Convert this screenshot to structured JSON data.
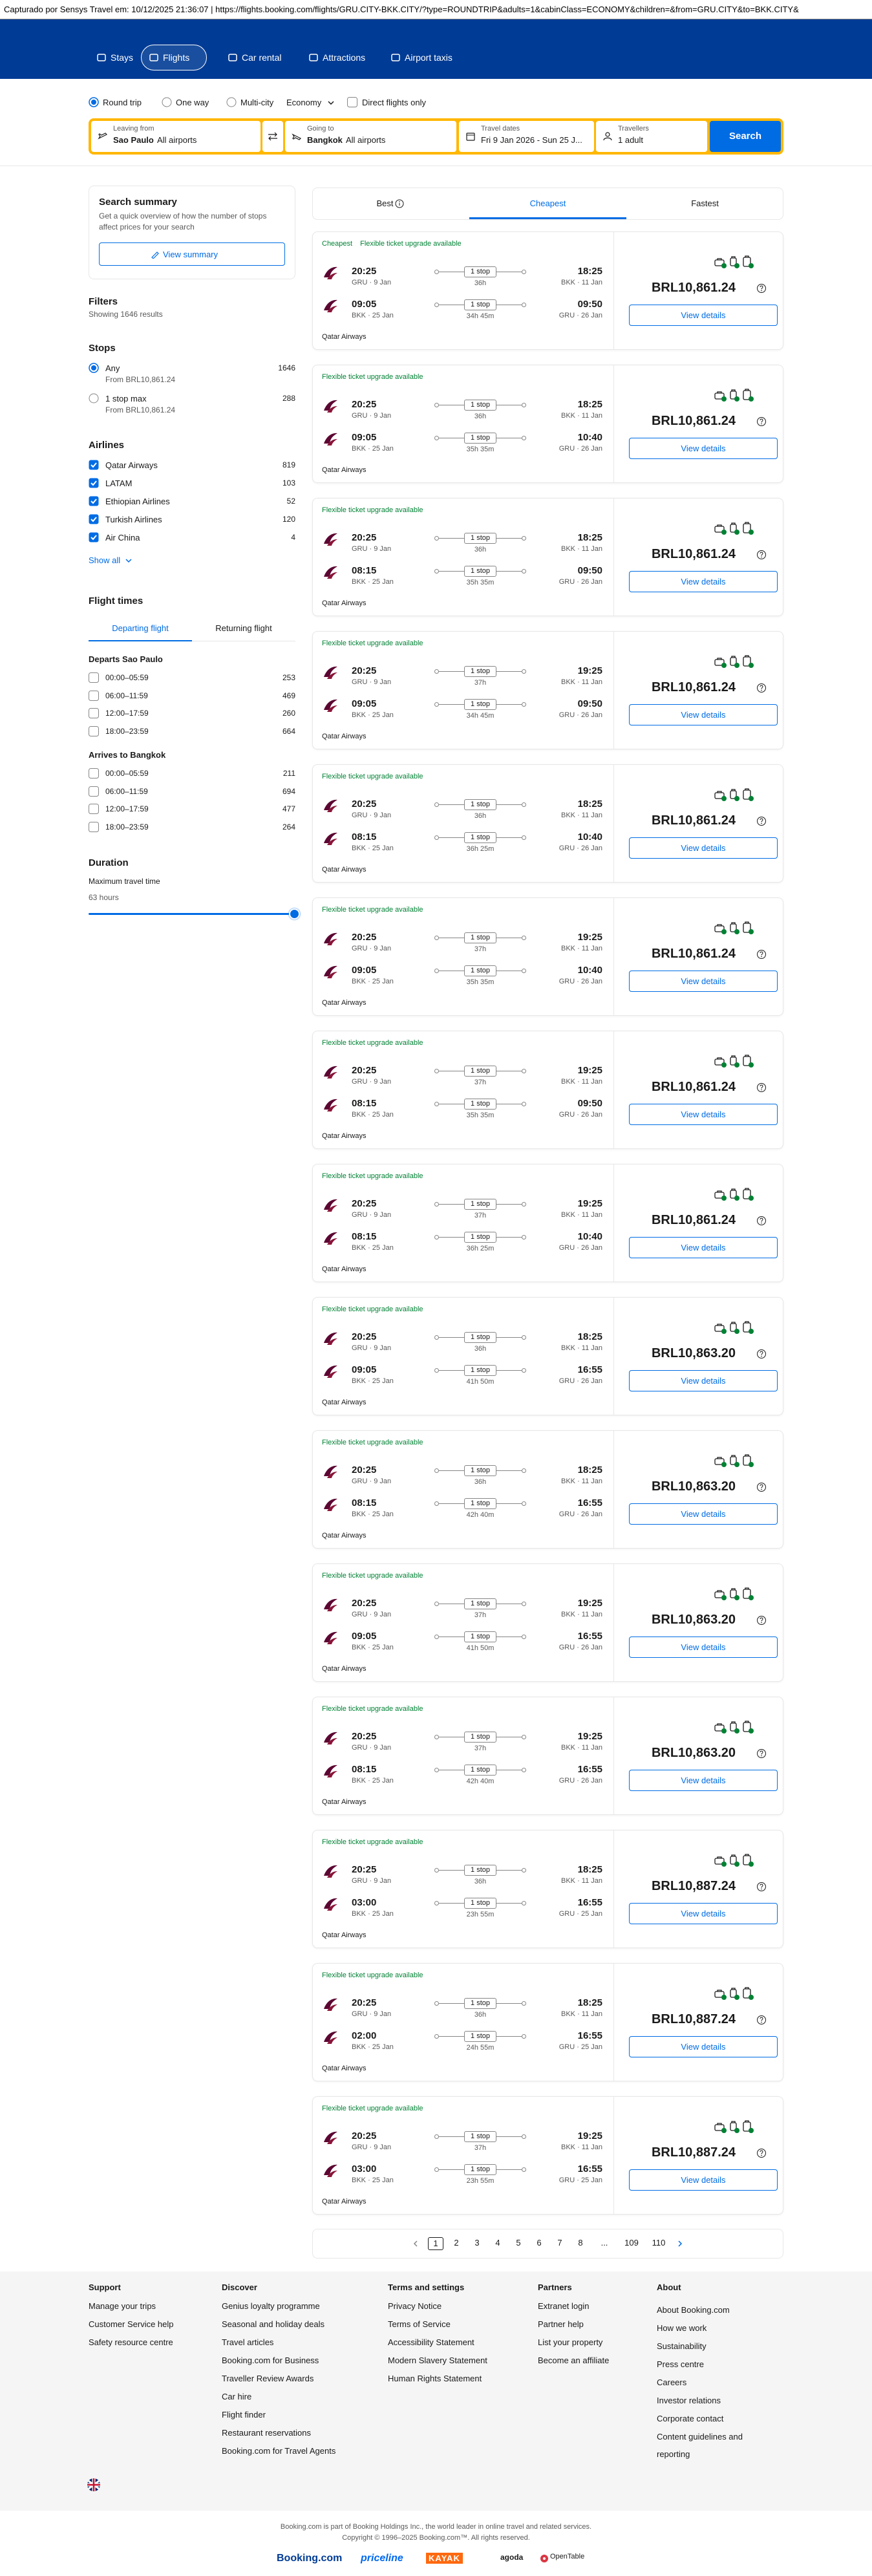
{
  "capture": "Capturado por Sensys Travel em: 10/12/2025 21:36:07  |  https://flights.booking.com/flights/GRU.CITY-BKK.CITY/?type=ROUNDTRIP&adults=1&cabinClass=ECONOMY&children=&from=GRU.CITY&to=BKK.CITY&",
  "nav": [
    "Stays",
    "Flights",
    "Car rental",
    "Attractions",
    "Airport taxis"
  ],
  "search": {
    "trip_types": [
      "Round trip",
      "One way",
      "Multi-city"
    ],
    "cabin": "Economy",
    "direct": "Direct flights only",
    "from": {
      "label": "Leaving from",
      "city": "Sao Paulo",
      "airports": "All airports"
    },
    "to": {
      "label": "Going to",
      "city": "Bangkok",
      "airports": "All airports"
    },
    "dates": {
      "label": "Travel dates",
      "value": "Fri 9 Jan 2026 - Sun 25 J..."
    },
    "travellers": {
      "label": "Travellers",
      "value": "1 adult"
    },
    "button": "Search"
  },
  "sidebar": {
    "summary": {
      "title": "Search summary",
      "text": "Get a quick overview of how the number of stops affect prices for your search",
      "button": "View summary"
    },
    "filters": {
      "title": "Filters",
      "count": "Showing 1646 results"
    },
    "stops": {
      "title": "Stops",
      "options": [
        {
          "label": "Any",
          "sub": "From BRL10,861.24",
          "count": "1646"
        },
        {
          "label": "1 stop max",
          "sub": "From BRL10,861.24",
          "count": "288"
        }
      ]
    },
    "airlines": {
      "title": "Airlines",
      "options": [
        {
          "label": "Qatar Airways",
          "count": "819"
        },
        {
          "label": "LATAM",
          "count": "103"
        },
        {
          "label": "Ethiopian Airlines",
          "count": "52"
        },
        {
          "label": "Turkish Airlines",
          "count": "120"
        },
        {
          "label": "Air China",
          "count": "4"
        }
      ],
      "show_all": "Show all"
    },
    "flight_times": {
      "title": "Flight times",
      "tabs": [
        "Departing flight",
        "Returning flight"
      ],
      "groups": [
        {
          "title": "Departs Sao Paulo",
          "options": [
            {
              "label": "00:00–05:59",
              "count": "253"
            },
            {
              "label": "06:00–11:59",
              "count": "469"
            },
            {
              "label": "12:00–17:59",
              "count": "260"
            },
            {
              "label": "18:00–23:59",
              "count": "664"
            }
          ]
        },
        {
          "title": "Arrives to Bangkok",
          "options": [
            {
              "label": "00:00–05:59",
              "count": "211"
            },
            {
              "label": "06:00–11:59",
              "count": "694"
            },
            {
              "label": "12:00–17:59",
              "count": "477"
            },
            {
              "label": "18:00–23:59",
              "count": "264"
            }
          ]
        }
      ]
    },
    "duration": {
      "title": "Duration",
      "label": "Maximum travel time",
      "value": "63 hours"
    }
  },
  "tabs": [
    "Best",
    "Cheapest",
    "Fastest"
  ],
  "results": [
    {
      "badges": [
        "Cheapest",
        "Flexible ticket upgrade available"
      ],
      "legs": [
        {
          "dep_time": "20:25",
          "dep_place": "GRU · 9 Jan",
          "stops": "1 stop",
          "duration": "36h",
          "arr_time": "18:25",
          "arr_place": "BKK · 11 Jan"
        },
        {
          "dep_time": "09:05",
          "dep_place": "BKK · 25 Jan",
          "stops": "1 stop",
          "duration": "34h 45m",
          "arr_time": "09:50",
          "arr_place": "GRU · 26 Jan"
        }
      ],
      "airline": "Qatar Airways",
      "price": "BRL10,861.24",
      "button": "View details"
    },
    {
      "badges": [
        "Flexible ticket upgrade available"
      ],
      "legs": [
        {
          "dep_time": "20:25",
          "dep_place": "GRU · 9 Jan",
          "stops": "1 stop",
          "duration": "36h",
          "arr_time": "18:25",
          "arr_place": "BKK · 11 Jan"
        },
        {
          "dep_time": "09:05",
          "dep_place": "BKK · 25 Jan",
          "stops": "1 stop",
          "duration": "35h 35m",
          "arr_time": "10:40",
          "arr_place": "GRU · 26 Jan"
        }
      ],
      "airline": "Qatar Airways",
      "price": "BRL10,861.24",
      "button": "View details"
    },
    {
      "badges": [
        "Flexible ticket upgrade available"
      ],
      "legs": [
        {
          "dep_time": "20:25",
          "dep_place": "GRU · 9 Jan",
          "stops": "1 stop",
          "duration": "36h",
          "arr_time": "18:25",
          "arr_place": "BKK · 11 Jan"
        },
        {
          "dep_time": "08:15",
          "dep_place": "BKK · 25 Jan",
          "stops": "1 stop",
          "duration": "35h 35m",
          "arr_time": "09:50",
          "arr_place": "GRU · 26 Jan"
        }
      ],
      "airline": "Qatar Airways",
      "price": "BRL10,861.24",
      "button": "View details"
    },
    {
      "badges": [
        "Flexible ticket upgrade available"
      ],
      "legs": [
        {
          "dep_time": "20:25",
          "dep_place": "GRU · 9 Jan",
          "stops": "1 stop",
          "duration": "37h",
          "arr_time": "19:25",
          "arr_place": "BKK · 11 Jan"
        },
        {
          "dep_time": "09:05",
          "dep_place": "BKK · 25 Jan",
          "stops": "1 stop",
          "duration": "34h 45m",
          "arr_time": "09:50",
          "arr_place": "GRU · 26 Jan"
        }
      ],
      "airline": "Qatar Airways",
      "price": "BRL10,861.24",
      "button": "View details"
    },
    {
      "badges": [
        "Flexible ticket upgrade available"
      ],
      "legs": [
        {
          "dep_time": "20:25",
          "dep_place": "GRU · 9 Jan",
          "stops": "1 stop",
          "duration": "36h",
          "arr_time": "18:25",
          "arr_place": "BKK · 11 Jan"
        },
        {
          "dep_time": "08:15",
          "dep_place": "BKK · 25 Jan",
          "stops": "1 stop",
          "duration": "36h 25m",
          "arr_time": "10:40",
          "arr_place": "GRU · 26 Jan"
        }
      ],
      "airline": "Qatar Airways",
      "price": "BRL10,861.24",
      "button": "View details"
    },
    {
      "badges": [
        "Flexible ticket upgrade available"
      ],
      "legs": [
        {
          "dep_time": "20:25",
          "dep_place": "GRU · 9 Jan",
          "stops": "1 stop",
          "duration": "37h",
          "arr_time": "19:25",
          "arr_place": "BKK · 11 Jan"
        },
        {
          "dep_time": "09:05",
          "dep_place": "BKK · 25 Jan",
          "stops": "1 stop",
          "duration": "35h 35m",
          "arr_time": "10:40",
          "arr_place": "GRU · 26 Jan"
        }
      ],
      "airline": "Qatar Airways",
      "price": "BRL10,861.24",
      "button": "View details"
    },
    {
      "badges": [
        "Flexible ticket upgrade available"
      ],
      "legs": [
        {
          "dep_time": "20:25",
          "dep_place": "GRU · 9 Jan",
          "stops": "1 stop",
          "duration": "37h",
          "arr_time": "19:25",
          "arr_place": "BKK · 11 Jan"
        },
        {
          "dep_time": "08:15",
          "dep_place": "BKK · 25 Jan",
          "stops": "1 stop",
          "duration": "35h 35m",
          "arr_time": "09:50",
          "arr_place": "GRU · 26 Jan"
        }
      ],
      "airline": "Qatar Airways",
      "price": "BRL10,861.24",
      "button": "View details"
    },
    {
      "badges": [
        "Flexible ticket upgrade available"
      ],
      "legs": [
        {
          "dep_time": "20:25",
          "dep_place": "GRU · 9 Jan",
          "stops": "1 stop",
          "duration": "37h",
          "arr_time": "19:25",
          "arr_place": "BKK · 11 Jan"
        },
        {
          "dep_time": "08:15",
          "dep_place": "BKK · 25 Jan",
          "stops": "1 stop",
          "duration": "36h 25m",
          "arr_time": "10:40",
          "arr_place": "GRU · 26 Jan"
        }
      ],
      "airline": "Qatar Airways",
      "price": "BRL10,861.24",
      "button": "View details"
    },
    {
      "badges": [
        "Flexible ticket upgrade available"
      ],
      "legs": [
        {
          "dep_time": "20:25",
          "dep_place": "GRU · 9 Jan",
          "stops": "1 stop",
          "duration": "36h",
          "arr_time": "18:25",
          "arr_place": "BKK · 11 Jan"
        },
        {
          "dep_time": "09:05",
          "dep_place": "BKK · 25 Jan",
          "stops": "1 stop",
          "duration": "41h 50m",
          "arr_time": "16:55",
          "arr_place": "GRU · 26 Jan"
        }
      ],
      "airline": "Qatar Airways",
      "price": "BRL10,863.20",
      "button": "View details"
    },
    {
      "badges": [
        "Flexible ticket upgrade available"
      ],
      "legs": [
        {
          "dep_time": "20:25",
          "dep_place": "GRU · 9 Jan",
          "stops": "1 stop",
          "duration": "36h",
          "arr_time": "18:25",
          "arr_place": "BKK · 11 Jan"
        },
        {
          "dep_time": "08:15",
          "dep_place": "BKK · 25 Jan",
          "stops": "1 stop",
          "duration": "42h 40m",
          "arr_time": "16:55",
          "arr_place": "GRU · 26 Jan"
        }
      ],
      "airline": "Qatar Airways",
      "price": "BRL10,863.20",
      "button": "View details"
    },
    {
      "badges": [
        "Flexible ticket upgrade available"
      ],
      "legs": [
        {
          "dep_time": "20:25",
          "dep_place": "GRU · 9 Jan",
          "stops": "1 stop",
          "duration": "37h",
          "arr_time": "19:25",
          "arr_place": "BKK · 11 Jan"
        },
        {
          "dep_time": "09:05",
          "dep_place": "BKK · 25 Jan",
          "stops": "1 stop",
          "duration": "41h 50m",
          "arr_time": "16:55",
          "arr_place": "GRU · 26 Jan"
        }
      ],
      "airline": "Qatar Airways",
      "price": "BRL10,863.20",
      "button": "View details"
    },
    {
      "badges": [
        "Flexible ticket upgrade available"
      ],
      "legs": [
        {
          "dep_time": "20:25",
          "dep_place": "GRU · 9 Jan",
          "stops": "1 stop",
          "duration": "37h",
          "arr_time": "19:25",
          "arr_place": "BKK · 11 Jan"
        },
        {
          "dep_time": "08:15",
          "dep_place": "BKK · 25 Jan",
          "stops": "1 stop",
          "duration": "42h 40m",
          "arr_time": "16:55",
          "arr_place": "GRU · 26 Jan"
        }
      ],
      "airline": "Qatar Airways",
      "price": "BRL10,863.20",
      "button": "View details"
    },
    {
      "badges": [
        "Flexible ticket upgrade available"
      ],
      "legs": [
        {
          "dep_time": "20:25",
          "dep_place": "GRU · 9 Jan",
          "stops": "1 stop",
          "duration": "36h",
          "arr_time": "18:25",
          "arr_place": "BKK · 11 Jan"
        },
        {
          "dep_time": "03:00",
          "dep_place": "BKK · 25 Jan",
          "stops": "1 stop",
          "duration": "23h 55m",
          "arr_time": "16:55",
          "arr_place": "GRU · 25 Jan"
        }
      ],
      "airline": "Qatar Airways",
      "price": "BRL10,887.24",
      "button": "View details"
    },
    {
      "badges": [
        "Flexible ticket upgrade available"
      ],
      "legs": [
        {
          "dep_time": "20:25",
          "dep_place": "GRU · 9 Jan",
          "stops": "1 stop",
          "duration": "36h",
          "arr_time": "18:25",
          "arr_place": "BKK · 11 Jan"
        },
        {
          "dep_time": "02:00",
          "dep_place": "BKK · 25 Jan",
          "stops": "1 stop",
          "duration": "24h 55m",
          "arr_time": "16:55",
          "arr_place": "GRU · 25 Jan"
        }
      ],
      "airline": "Qatar Airways",
      "price": "BRL10,887.24",
      "button": "View details"
    },
    {
      "badges": [
        "Flexible ticket upgrade available"
      ],
      "legs": [
        {
          "dep_time": "20:25",
          "dep_place": "GRU · 9 Jan",
          "stops": "1 stop",
          "duration": "37h",
          "arr_time": "19:25",
          "arr_place": "BKK · 11 Jan"
        },
        {
          "dep_time": "03:00",
          "dep_place": "BKK · 25 Jan",
          "stops": "1 stop",
          "duration": "23h 55m",
          "arr_time": "16:55",
          "arr_place": "GRU · 25 Jan"
        }
      ],
      "airline": "Qatar Airways",
      "price": "BRL10,887.24",
      "button": "View details"
    }
  ],
  "pagination": [
    "1",
    "2",
    "3",
    "4",
    "5",
    "6",
    "7",
    "8",
    "...",
    "109",
    "110"
  ],
  "footer": {
    "columns": [
      {
        "title": "Support",
        "links": [
          "Manage your trips",
          "Customer Service help",
          "Safety resource centre"
        ]
      },
      {
        "title": "Discover",
        "links": [
          "Genius loyalty programme",
          "Seasonal and holiday deals",
          "Travel articles",
          "Booking.com for Business",
          "Traveller Review Awards",
          "Car hire",
          "Flight finder",
          "Restaurant reservations",
          "Booking.com for Travel Agents"
        ]
      },
      {
        "title": "Terms and settings",
        "links": [
          "Privacy Notice",
          "Terms of Service",
          "Accessibility Statement",
          "Modern Slavery Statement",
          "Human Rights Statement"
        ]
      },
      {
        "title": "Partners",
        "links": [
          "Extranet login",
          "Partner help",
          "List your property",
          "Become an affiliate"
        ]
      },
      {
        "title": "About",
        "links": [
          "About Booking.com",
          "How we work",
          "Sustainability",
          "Press centre",
          "Careers",
          "Investor relations",
          "Corporate contact",
          "Content guidelines and reporting"
        ]
      }
    ],
    "legal": [
      "Booking.com is part of Booking Holdings Inc., the world leader in online travel and related services.",
      "Copyright © 1996–2025 Booking.com™. All rights reserved."
    ],
    "brands": [
      "Booking.com",
      "priceline",
      "KAYAK",
      "agoda",
      "OpenTable"
    ]
  }
}
